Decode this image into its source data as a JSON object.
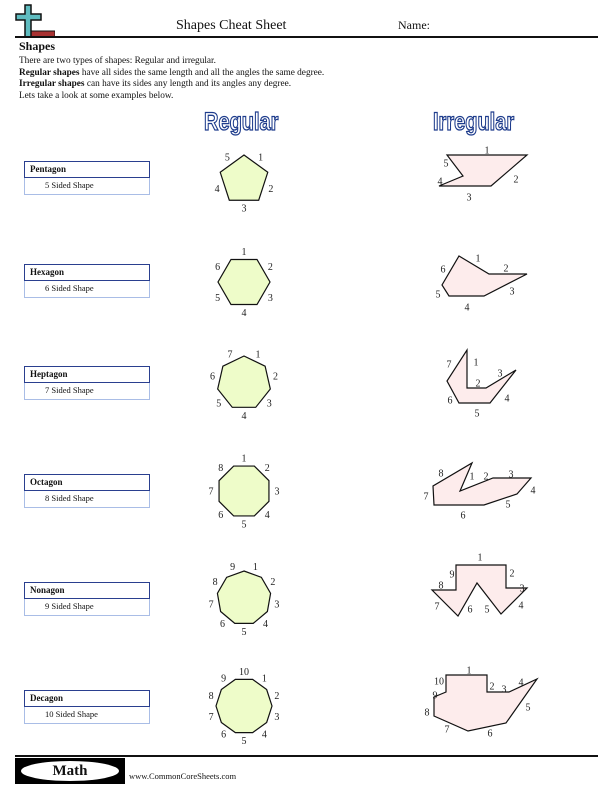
{
  "header": {
    "title": "Shapes Cheat Sheet",
    "name_label": "Name:"
  },
  "section_title": "Shapes",
  "intro": {
    "line1": "There are two types of shapes: Regular and irregular.",
    "line2_bold": "Regular shapes",
    "line2_rest": " have all sides the same length and all the angles the same degree.",
    "line3_bold": "Irregular shapes",
    "line3_rest": " can have its sides any length and its angles any degree.",
    "line4": "Lets take a look at some examples below."
  },
  "columns": {
    "regular": "Regular",
    "irregular": "Irregular"
  },
  "colors": {
    "regular_fill": "#eefcc9",
    "irregular_fill": "#fdecec",
    "label_border": "#2a3f8f",
    "title_outline": "#1e3c8c"
  },
  "shapes": [
    {
      "name": "Pentagon",
      "description": "5 Sided Shape",
      "sides": 5
    },
    {
      "name": "Hexagon",
      "description": "6 Sided Shape",
      "sides": 6
    },
    {
      "name": "Heptagon",
      "description": "7 Sided Shape",
      "sides": 7
    },
    {
      "name": "Octagon",
      "description": "8 Sided Shape",
      "sides": 8
    },
    {
      "name": "Nonagon",
      "description": "9 Sided Shape",
      "sides": 9
    },
    {
      "name": "Decagon",
      "description": "10 Sided Shape",
      "sides": 10
    }
  ],
  "footer": {
    "badge": "Math",
    "url": "www.CommonCoreSheets.com"
  }
}
